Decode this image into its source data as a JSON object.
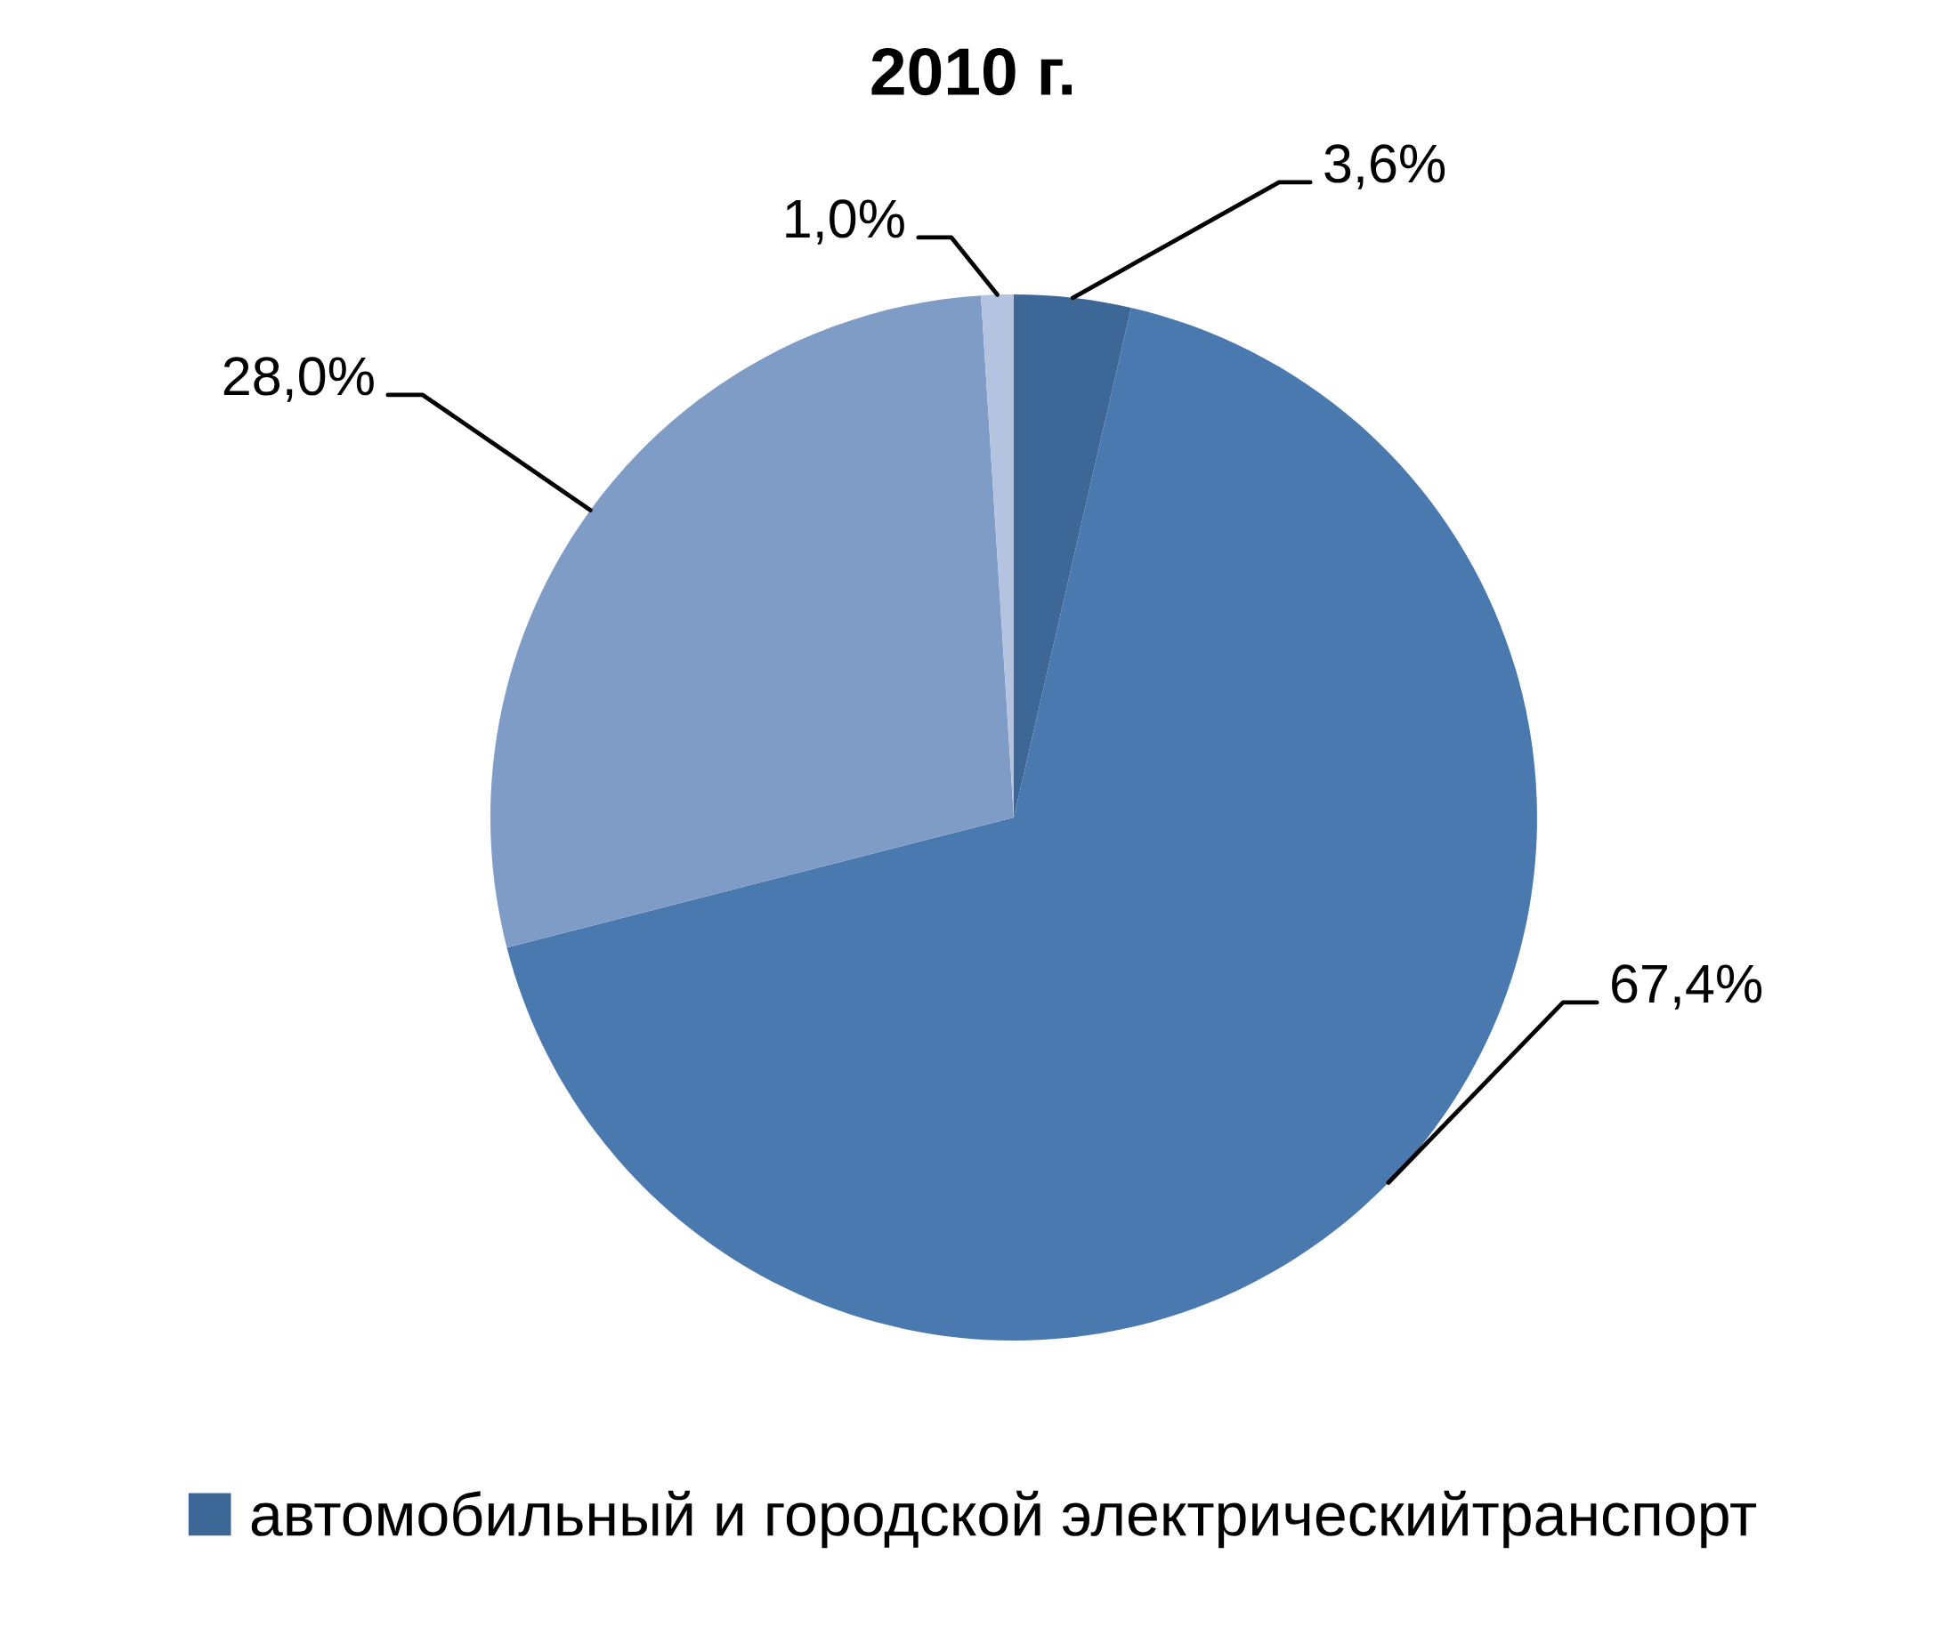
{
  "chart_data": {
    "type": "pie",
    "title": "2010 г.",
    "categories": [
      "автомобильный и городской электрическийтранспорт",
      null,
      null,
      null
    ],
    "values": [
      3.6,
      67.4,
      28.0,
      1.0
    ],
    "colors": [
      "#3d6797",
      "#4a79b0",
      "#7f9cc7",
      "#b4c4e0"
    ],
    "value_labels": [
      "3,6%",
      "67,4%",
      "28,0%",
      "1,0%"
    ],
    "legend": "bottom"
  }
}
